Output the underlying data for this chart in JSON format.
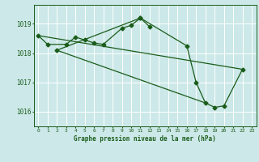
{
  "xlabel": "Graphe pression niveau de la mer (hPa)",
  "background_color": "#cce8e8",
  "grid_color": "#ffffff",
  "line_color": "#1a5c1a",
  "marker_color": "#1a5c1a",
  "ylim": [
    1015.5,
    1019.65
  ],
  "yticks": [
    1016,
    1017,
    1018,
    1019
  ],
  "xlim": [
    -0.5,
    23.5
  ],
  "line1_x": [
    0,
    1,
    3,
    4,
    5,
    6,
    7,
    9,
    10,
    11,
    12
  ],
  "line1_y": [
    1018.6,
    1018.3,
    1018.3,
    1018.55,
    1018.45,
    1018.35,
    1018.3,
    1018.85,
    1018.95,
    1019.2,
    1018.9
  ],
  "line2_x": [
    2,
    11,
    16,
    17,
    18,
    19,
    20,
    22
  ],
  "line2_y": [
    1018.1,
    1019.2,
    1018.25,
    1017.0,
    1016.3,
    1016.15,
    1016.2,
    1017.45
  ],
  "line3_x": [
    2,
    18
  ],
  "line3_y": [
    1018.1,
    1016.3
  ],
  "line4_x": [
    0,
    22
  ],
  "line4_y": [
    1018.6,
    1017.45
  ]
}
